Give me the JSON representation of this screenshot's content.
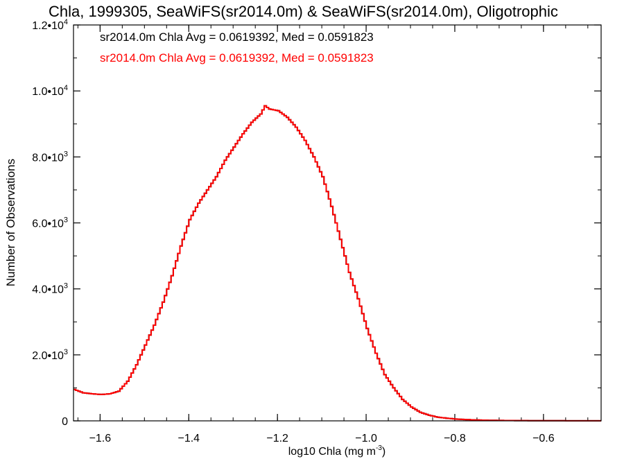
{
  "chart_data": {
    "type": "line",
    "title": "Chla, 1999305, SeaWiFS(sr2014.0m) & SeaWiFS(sr2014.0m), Oligotrophic",
    "xlabel": "log10 Chla (mg m",
    "xlabel_sup": "-3",
    "xlabel_tail": ")",
    "ylabel": "Number of Observations",
    "xlim": [
      -1.66,
      -0.47
    ],
    "ylim": [
      0,
      12000
    ],
    "x_ticks": [
      -1.6,
      -1.4,
      -1.2,
      -1.0,
      -0.8,
      -0.6
    ],
    "x_tick_labels": [
      "−1.6",
      "−1.4",
      "−1.2",
      "−1.0",
      "−0.8",
      "−0.6"
    ],
    "y_ticks": [
      {
        "value": 0,
        "label": "0",
        "exp": ""
      },
      {
        "value": 2000,
        "label": "2.0•10",
        "exp": "3"
      },
      {
        "value": 4000,
        "label": "4.0•10",
        "exp": "3"
      },
      {
        "value": 6000,
        "label": "6.0•10",
        "exp": "3"
      },
      {
        "value": 8000,
        "label": "8.0•10",
        "exp": "3"
      },
      {
        "value": 10000,
        "label": "1.0•10",
        "exp": "4"
      },
      {
        "value": 12000,
        "label": "1.2•10",
        "exp": "4"
      }
    ],
    "annotations": [
      {
        "text": "sr2014.0m Chla Avg = 0.0619392, Med = 0.0591823",
        "color": "#000000"
      },
      {
        "text": "sr2014.0m Chla Avg = 0.0619392, Med = 0.0591823",
        "color": "#ff0000"
      }
    ],
    "series": [
      {
        "color": "#000000",
        "x": [
          -1.66,
          -1.64,
          -1.62,
          -1.6,
          -1.58,
          -1.56,
          -1.54,
          -1.52,
          -1.5,
          -1.48,
          -1.46,
          -1.44,
          -1.42,
          -1.4,
          -1.38,
          -1.36,
          -1.34,
          -1.32,
          -1.3,
          -1.28,
          -1.26,
          -1.24,
          -1.23,
          -1.22,
          -1.2,
          -1.18,
          -1.16,
          -1.14,
          -1.12,
          -1.1,
          -1.08,
          -1.06,
          -1.04,
          -1.02,
          -1.0,
          -0.98,
          -0.96,
          -0.94,
          -0.92,
          -0.9,
          -0.88,
          -0.86,
          -0.84,
          -0.82,
          -0.8,
          -0.78,
          -0.76,
          -0.74,
          -0.72,
          -0.7,
          -0.65,
          -0.6,
          -0.55,
          -0.5,
          -0.47
        ],
        "y": [
          950,
          850,
          820,
          800,
          820,
          900,
          1200,
          1700,
          2300,
          2900,
          3600,
          4400,
          5300,
          6100,
          6600,
          7000,
          7400,
          7900,
          8300,
          8700,
          9050,
          9300,
          9550,
          9450,
          9400,
          9200,
          8900,
          8500,
          8000,
          7400,
          6500,
          5500,
          4500,
          3700,
          2800,
          2050,
          1400,
          1000,
          650,
          420,
          260,
          170,
          110,
          80,
          55,
          40,
          30,
          22,
          16,
          12,
          8,
          5,
          3,
          2,
          2
        ]
      },
      {
        "color": "#ff0000",
        "x": [
          -1.66,
          -1.64,
          -1.62,
          -1.6,
          -1.58,
          -1.56,
          -1.54,
          -1.52,
          -1.5,
          -1.48,
          -1.46,
          -1.44,
          -1.42,
          -1.4,
          -1.38,
          -1.36,
          -1.34,
          -1.32,
          -1.3,
          -1.28,
          -1.26,
          -1.24,
          -1.23,
          -1.22,
          -1.2,
          -1.18,
          -1.16,
          -1.14,
          -1.12,
          -1.1,
          -1.08,
          -1.06,
          -1.04,
          -1.02,
          -1.0,
          -0.98,
          -0.96,
          -0.94,
          -0.92,
          -0.9,
          -0.88,
          -0.86,
          -0.84,
          -0.82,
          -0.8,
          -0.78,
          -0.76,
          -0.74,
          -0.72,
          -0.7,
          -0.65,
          -0.6,
          -0.55,
          -0.5,
          -0.47
        ],
        "y": [
          950,
          850,
          820,
          800,
          820,
          900,
          1200,
          1700,
          2300,
          2900,
          3600,
          4400,
          5300,
          6100,
          6600,
          7000,
          7400,
          7900,
          8300,
          8700,
          9050,
          9300,
          9550,
          9450,
          9400,
          9200,
          8900,
          8500,
          8000,
          7400,
          6500,
          5500,
          4500,
          3700,
          2800,
          2050,
          1400,
          1000,
          650,
          420,
          260,
          170,
          110,
          80,
          55,
          40,
          30,
          22,
          16,
          12,
          8,
          5,
          3,
          2,
          2
        ]
      }
    ]
  }
}
